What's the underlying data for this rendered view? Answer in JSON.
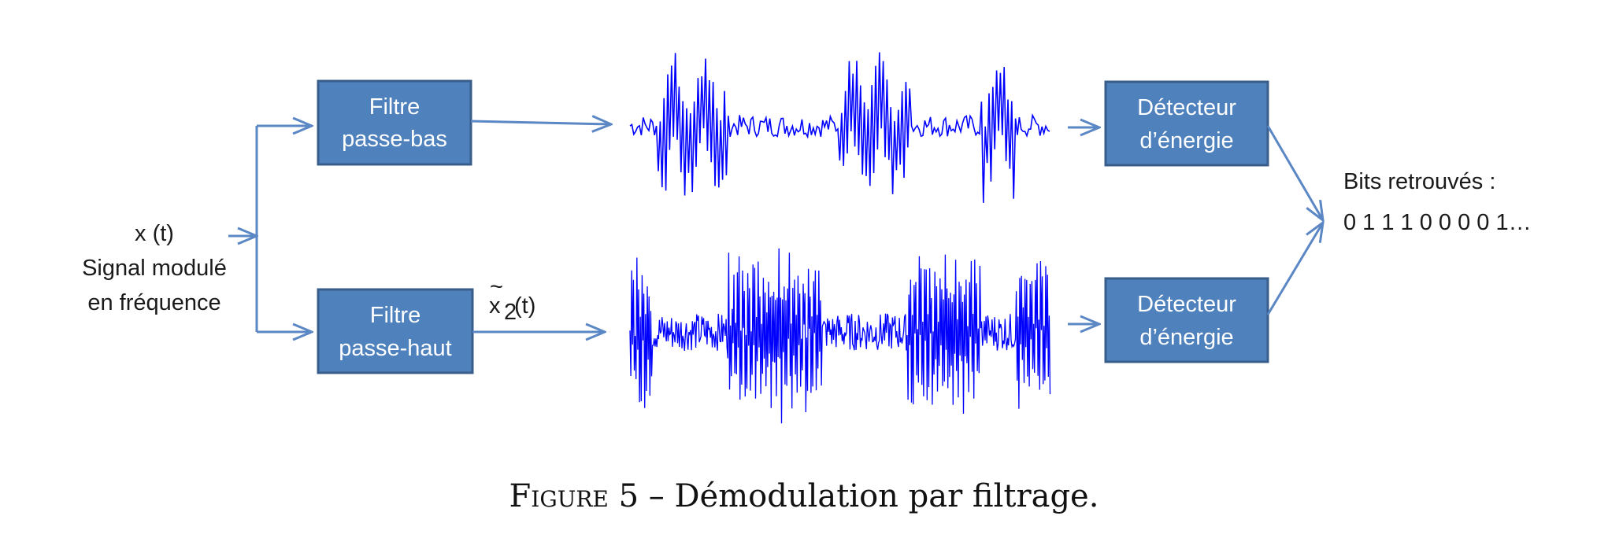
{
  "input": {
    "line1": "x (t)",
    "line2": "Signal modulé",
    "line3": "en fréquence"
  },
  "filters": {
    "lowpass": {
      "line1": "Filtre",
      "line2": "passe-bas"
    },
    "highpass": {
      "line1": "Filtre",
      "line2": "passe-haut"
    }
  },
  "signal_label": {
    "base": "x",
    "tilde": "~",
    "sub": "2",
    "arg": "(t)"
  },
  "detectors": {
    "top": {
      "line1": "Détecteur",
      "line2": "d’énergie"
    },
    "bottom": {
      "line1": "Détecteur",
      "line2": "d’énergie"
    }
  },
  "output": {
    "line1": "Bits retrouvés :",
    "line2": "0 1 1 1 0 0 0 0 1…"
  },
  "caption": {
    "label": "Figure 5",
    "separator": " – ",
    "text": "Démodulation par filtrage."
  },
  "colors": {
    "box_fill": "#4f81bd",
    "box_stroke": "#385d8a",
    "arrow": "#5b87c5",
    "waveform": "#0000ff"
  }
}
